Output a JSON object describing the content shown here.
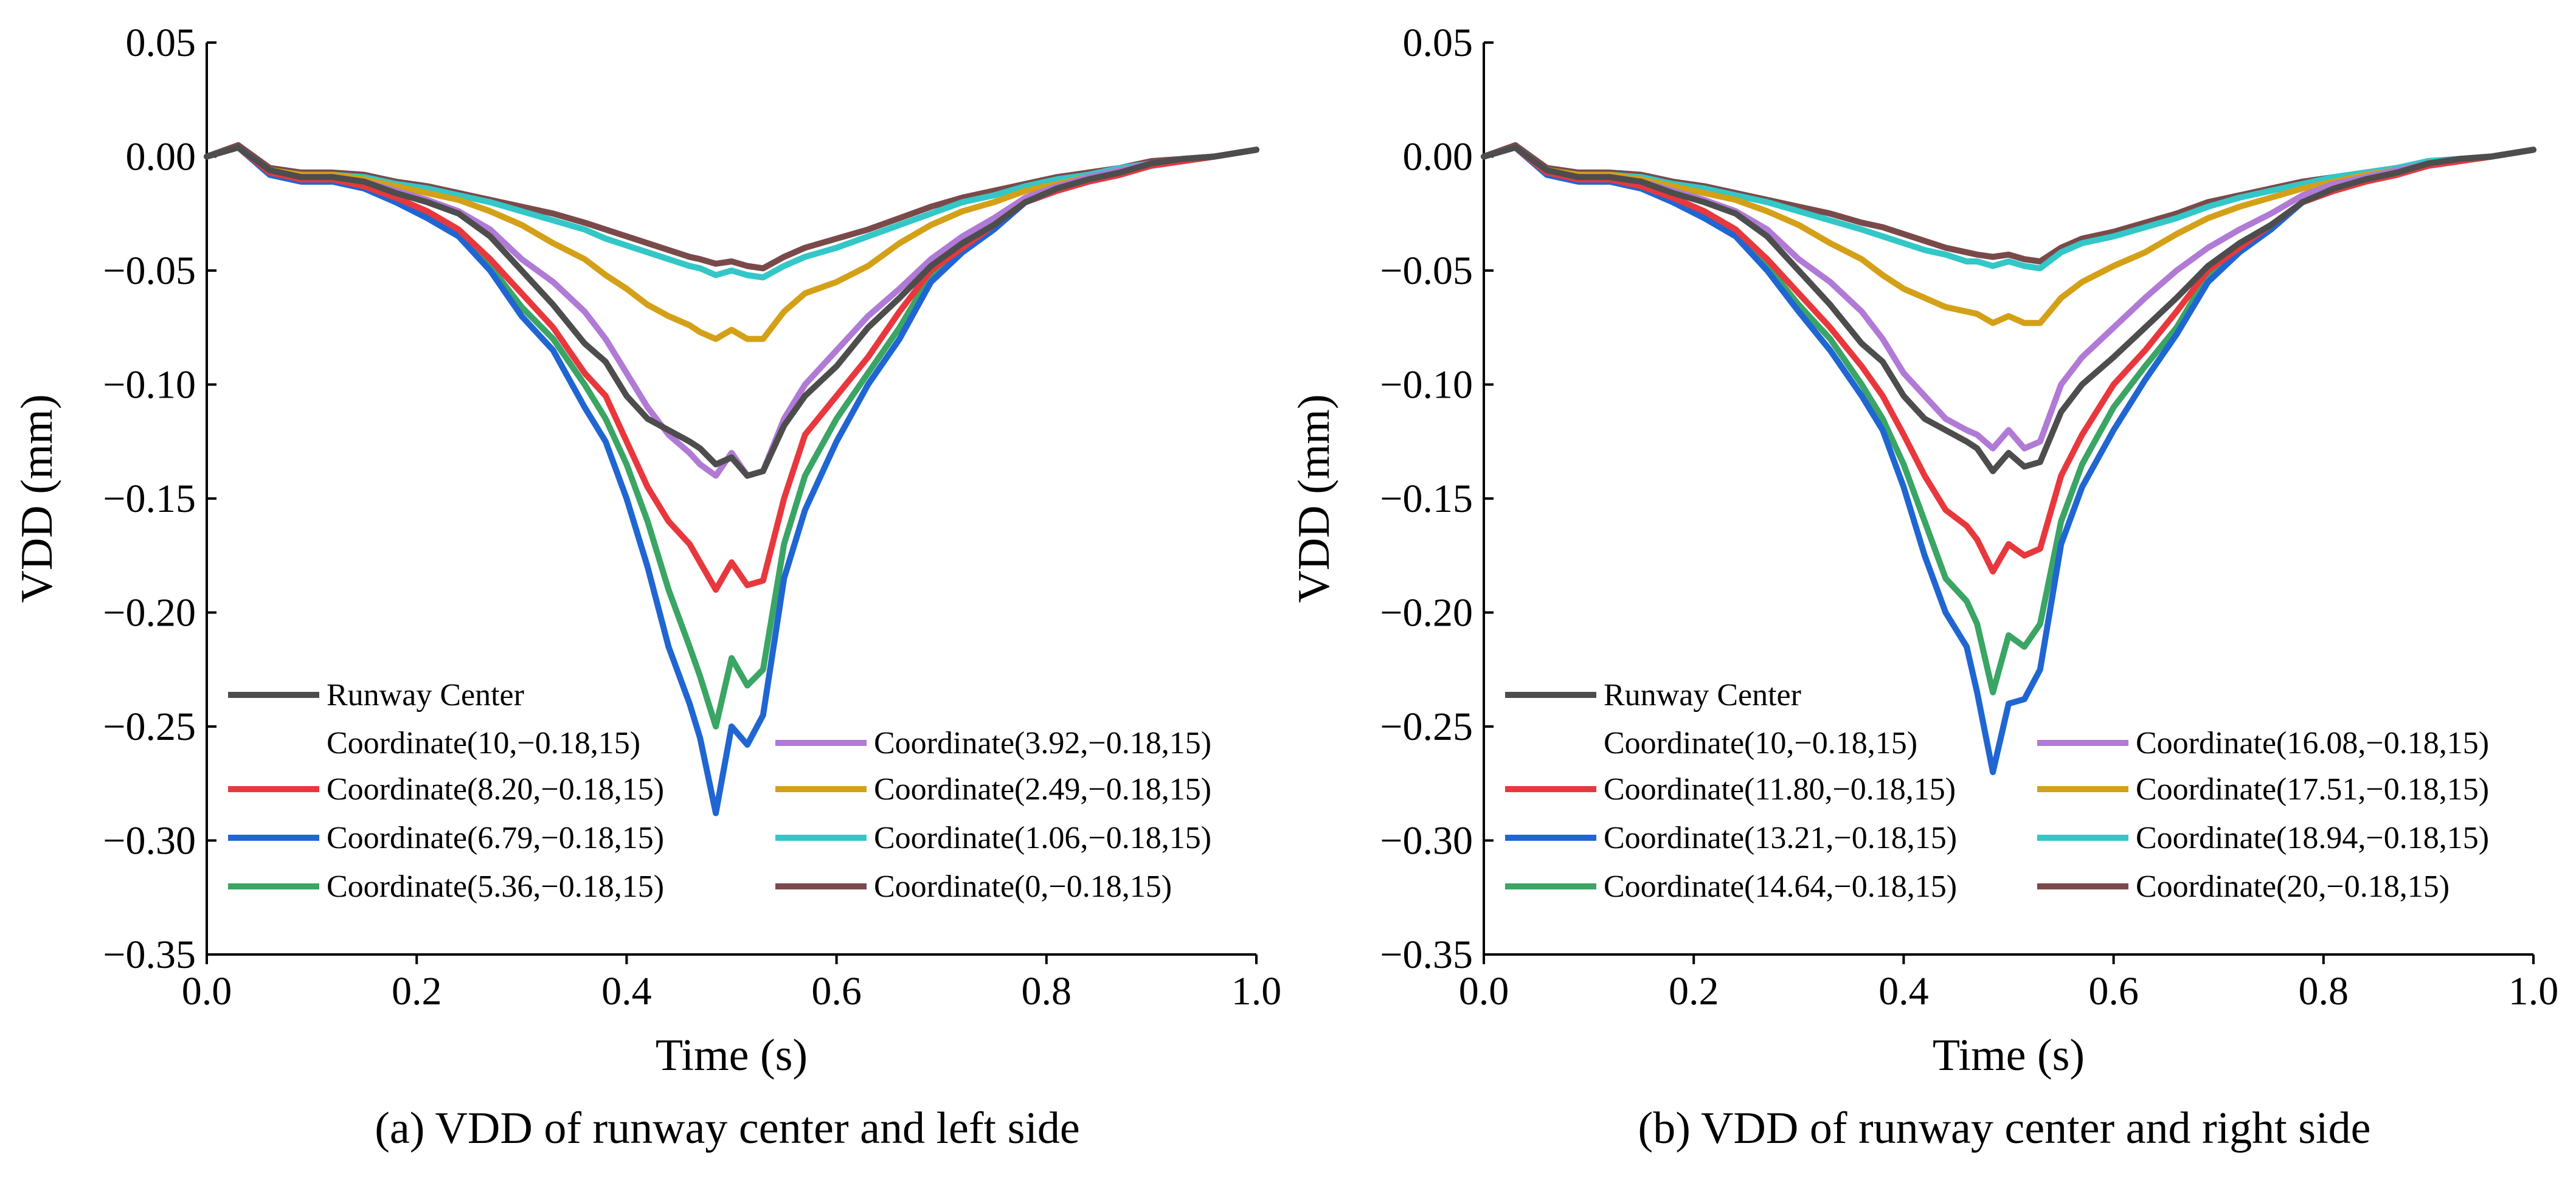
{
  "figure": {
    "captions": [
      "(a) VDD of runway center and left side",
      "(b) VDD of runway center and right side"
    ]
  },
  "chart_data": [
    {
      "type": "line",
      "title": "",
      "xlabel": "Time (s)",
      "ylabel": "VDD (mm)",
      "xlim": [
        0.0,
        1.0
      ],
      "ylim": [
        -0.35,
        0.05
      ],
      "xticks": [
        "0.0",
        "0.2",
        "0.4",
        "0.6",
        "0.8",
        "1.0"
      ],
      "yticks": [
        "0.05",
        "0.00",
        "−0.05",
        "−0.10",
        "−0.15",
        "−0.20",
        "−0.25",
        "−0.30",
        "−0.35"
      ],
      "grid": false,
      "legend_position": "bottom-left",
      "x": [
        0.0,
        0.03,
        0.06,
        0.09,
        0.12,
        0.15,
        0.18,
        0.21,
        0.24,
        0.27,
        0.3,
        0.33,
        0.36,
        0.38,
        0.4,
        0.42,
        0.44,
        0.46,
        0.47,
        0.485,
        0.5,
        0.515,
        0.53,
        0.55,
        0.57,
        0.6,
        0.63,
        0.66,
        0.69,
        0.72,
        0.75,
        0.78,
        0.81,
        0.84,
        0.87,
        0.9,
        0.93,
        0.96,
        1.0
      ],
      "series": [
        {
          "name": "Runway Center",
          "values": [
            0.0,
            0.004,
            -0.006,
            -0.009,
            -0.009,
            -0.011,
            -0.016,
            -0.02,
            -0.025,
            -0.035,
            -0.05,
            -0.065,
            -0.082,
            -0.09,
            -0.105,
            -0.115,
            -0.12,
            -0.125,
            -0.128,
            -0.135,
            -0.132,
            -0.14,
            -0.138,
            -0.118,
            -0.105,
            -0.092,
            -0.075,
            -0.062,
            -0.048,
            -0.038,
            -0.03,
            -0.02,
            -0.014,
            -0.01,
            -0.007,
            -0.003,
            -0.001,
            0.0,
            0.003
          ]
        },
        {
          "name": "Coordinate(8.20,−0.18,15)",
          "values": [
            0.0,
            0.004,
            -0.007,
            -0.01,
            -0.01,
            -0.013,
            -0.018,
            -0.024,
            -0.032,
            -0.045,
            -0.06,
            -0.075,
            -0.095,
            -0.105,
            -0.125,
            -0.145,
            -0.16,
            -0.17,
            -0.178,
            -0.19,
            -0.178,
            -0.188,
            -0.186,
            -0.15,
            -0.122,
            -0.105,
            -0.088,
            -0.068,
            -0.05,
            -0.04,
            -0.03,
            -0.02,
            -0.015,
            -0.011,
            -0.008,
            -0.004,
            -0.002,
            0.0,
            0.003
          ]
        },
        {
          "name": "Coordinate(6.79,−0.18,15)",
          "values": [
            0.0,
            0.004,
            -0.008,
            -0.011,
            -0.011,
            -0.014,
            -0.02,
            -0.027,
            -0.035,
            -0.05,
            -0.07,
            -0.085,
            -0.11,
            -0.125,
            -0.15,
            -0.18,
            -0.215,
            -0.24,
            -0.255,
            -0.288,
            -0.25,
            -0.258,
            -0.245,
            -0.185,
            -0.155,
            -0.125,
            -0.1,
            -0.08,
            -0.055,
            -0.042,
            -0.032,
            -0.02,
            -0.015,
            -0.011,
            -0.008,
            -0.004,
            -0.002,
            0.0,
            0.003
          ]
        },
        {
          "name": "Coordinate(5.36,−0.18,15)",
          "values": [
            0.0,
            0.004,
            -0.008,
            -0.011,
            -0.011,
            -0.014,
            -0.02,
            -0.026,
            -0.034,
            -0.048,
            -0.066,
            -0.08,
            -0.1,
            -0.115,
            -0.135,
            -0.16,
            -0.19,
            -0.215,
            -0.228,
            -0.25,
            -0.22,
            -0.232,
            -0.225,
            -0.17,
            -0.14,
            -0.115,
            -0.095,
            -0.075,
            -0.052,
            -0.04,
            -0.031,
            -0.02,
            -0.015,
            -0.011,
            -0.008,
            -0.004,
            -0.002,
            0.0,
            0.003
          ]
        },
        {
          "name": "Coordinate(3.92,−0.18,15)",
          "values": [
            0.0,
            0.004,
            -0.006,
            -0.009,
            -0.009,
            -0.011,
            -0.015,
            -0.019,
            -0.024,
            -0.032,
            -0.045,
            -0.055,
            -0.068,
            -0.08,
            -0.095,
            -0.11,
            -0.122,
            -0.13,
            -0.135,
            -0.14,
            -0.13,
            -0.14,
            -0.138,
            -0.115,
            -0.1,
            -0.085,
            -0.07,
            -0.058,
            -0.045,
            -0.035,
            -0.027,
            -0.018,
            -0.013,
            -0.009,
            -0.006,
            -0.003,
            -0.001,
            0.0,
            0.003
          ]
        },
        {
          "name": "Coordinate(2.49,−0.18,15)",
          "values": [
            0.0,
            0.004,
            -0.006,
            -0.008,
            -0.008,
            -0.01,
            -0.013,
            -0.016,
            -0.019,
            -0.024,
            -0.03,
            -0.038,
            -0.045,
            -0.052,
            -0.058,
            -0.065,
            -0.07,
            -0.074,
            -0.077,
            -0.08,
            -0.076,
            -0.08,
            -0.08,
            -0.068,
            -0.06,
            -0.055,
            -0.048,
            -0.038,
            -0.03,
            -0.024,
            -0.02,
            -0.015,
            -0.012,
            -0.009,
            -0.006,
            -0.003,
            -0.001,
            0.0,
            0.003
          ]
        },
        {
          "name": "Coordinate(1.06,−0.18,15)",
          "values": [
            0.0,
            0.004,
            -0.006,
            -0.008,
            -0.008,
            -0.009,
            -0.012,
            -0.014,
            -0.017,
            -0.02,
            -0.024,
            -0.028,
            -0.032,
            -0.036,
            -0.039,
            -0.042,
            -0.045,
            -0.048,
            -0.049,
            -0.052,
            -0.05,
            -0.052,
            -0.053,
            -0.048,
            -0.044,
            -0.04,
            -0.035,
            -0.03,
            -0.025,
            -0.02,
            -0.017,
            -0.013,
            -0.01,
            -0.008,
            -0.005,
            -0.003,
            -0.001,
            0.0,
            0.003
          ]
        },
        {
          "name": "Coordinate(0,−0.18,15)",
          "values": [
            0.0,
            0.005,
            -0.005,
            -0.007,
            -0.007,
            -0.008,
            -0.011,
            -0.013,
            -0.016,
            -0.019,
            -0.022,
            -0.025,
            -0.029,
            -0.032,
            -0.035,
            -0.038,
            -0.041,
            -0.044,
            -0.045,
            -0.047,
            -0.046,
            -0.048,
            -0.049,
            -0.044,
            -0.04,
            -0.036,
            -0.032,
            -0.027,
            -0.022,
            -0.018,
            -0.015,
            -0.012,
            -0.009,
            -0.007,
            -0.005,
            -0.002,
            -0.001,
            0.0,
            0.003
          ]
        }
      ]
    },
    {
      "type": "line",
      "title": "",
      "xlabel": "Time (s)",
      "ylabel": "VDD (mm)",
      "xlim": [
        0.0,
        1.0
      ],
      "ylim": [
        -0.35,
        0.05
      ],
      "xticks": [
        "0.0",
        "0.2",
        "0.4",
        "0.6",
        "0.8",
        "1.0"
      ],
      "yticks": [
        "0.05",
        "0.00",
        "−0.05",
        "−0.10",
        "−0.15",
        "−0.20",
        "−0.25",
        "−0.30",
        "−0.35"
      ],
      "grid": false,
      "legend_position": "bottom-left",
      "x": [
        0.0,
        0.03,
        0.06,
        0.09,
        0.12,
        0.15,
        0.18,
        0.21,
        0.24,
        0.27,
        0.3,
        0.33,
        0.36,
        0.38,
        0.4,
        0.42,
        0.44,
        0.46,
        0.47,
        0.485,
        0.5,
        0.515,
        0.53,
        0.55,
        0.57,
        0.6,
        0.63,
        0.66,
        0.69,
        0.72,
        0.75,
        0.78,
        0.81,
        0.84,
        0.87,
        0.9,
        0.93,
        0.96,
        1.0
      ],
      "series": [
        {
          "name": "Runway Center",
          "values": [
            0.0,
            0.004,
            -0.006,
            -0.009,
            -0.009,
            -0.011,
            -0.016,
            -0.02,
            -0.025,
            -0.035,
            -0.05,
            -0.065,
            -0.082,
            -0.09,
            -0.105,
            -0.115,
            -0.12,
            -0.125,
            -0.128,
            -0.138,
            -0.13,
            -0.136,
            -0.134,
            -0.112,
            -0.1,
            -0.088,
            -0.075,
            -0.062,
            -0.048,
            -0.038,
            -0.03,
            -0.02,
            -0.014,
            -0.01,
            -0.007,
            -0.003,
            -0.001,
            0.0,
            0.003
          ]
        },
        {
          "name": "Coordinate(11.80,−0.18,15)",
          "values": [
            0.0,
            0.004,
            -0.007,
            -0.01,
            -0.01,
            -0.013,
            -0.018,
            -0.024,
            -0.032,
            -0.045,
            -0.06,
            -0.075,
            -0.092,
            -0.105,
            -0.122,
            -0.14,
            -0.155,
            -0.162,
            -0.168,
            -0.182,
            -0.17,
            -0.175,
            -0.172,
            -0.14,
            -0.122,
            -0.1,
            -0.085,
            -0.068,
            -0.05,
            -0.04,
            -0.03,
            -0.02,
            -0.015,
            -0.011,
            -0.008,
            -0.004,
            -0.002,
            0.0,
            0.003
          ]
        },
        {
          "name": "Coordinate(13.21,−0.18,15)",
          "values": [
            0.0,
            0.004,
            -0.008,
            -0.011,
            -0.011,
            -0.014,
            -0.02,
            -0.027,
            -0.035,
            -0.05,
            -0.068,
            -0.085,
            -0.105,
            -0.12,
            -0.145,
            -0.175,
            -0.2,
            -0.215,
            -0.235,
            -0.27,
            -0.24,
            -0.238,
            -0.225,
            -0.17,
            -0.145,
            -0.12,
            -0.098,
            -0.078,
            -0.055,
            -0.042,
            -0.032,
            -0.02,
            -0.015,
            -0.011,
            -0.008,
            -0.004,
            -0.002,
            0.0,
            0.003
          ]
        },
        {
          "name": "Coordinate(14.64,−0.18,15)",
          "values": [
            0.0,
            0.004,
            -0.008,
            -0.011,
            -0.011,
            -0.014,
            -0.02,
            -0.026,
            -0.034,
            -0.048,
            -0.065,
            -0.08,
            -0.1,
            -0.115,
            -0.135,
            -0.16,
            -0.185,
            -0.195,
            -0.205,
            -0.235,
            -0.21,
            -0.215,
            -0.205,
            -0.16,
            -0.135,
            -0.11,
            -0.092,
            -0.075,
            -0.052,
            -0.04,
            -0.031,
            -0.02,
            -0.015,
            -0.011,
            -0.008,
            -0.004,
            -0.002,
            0.0,
            0.003
          ]
        },
        {
          "name": "Coordinate(16.08,−0.18,15)",
          "values": [
            0.0,
            0.004,
            -0.006,
            -0.009,
            -0.009,
            -0.011,
            -0.015,
            -0.019,
            -0.024,
            -0.032,
            -0.045,
            -0.055,
            -0.068,
            -0.08,
            -0.095,
            -0.105,
            -0.115,
            -0.12,
            -0.122,
            -0.128,
            -0.12,
            -0.128,
            -0.125,
            -0.1,
            -0.088,
            -0.075,
            -0.062,
            -0.05,
            -0.04,
            -0.032,
            -0.025,
            -0.017,
            -0.012,
            -0.009,
            -0.006,
            -0.003,
            -0.001,
            0.0,
            0.003
          ]
        },
        {
          "name": "Coordinate(17.51,−0.18,15)",
          "values": [
            0.0,
            0.004,
            -0.006,
            -0.008,
            -0.008,
            -0.01,
            -0.013,
            -0.016,
            -0.019,
            -0.024,
            -0.03,
            -0.038,
            -0.045,
            -0.052,
            -0.058,
            -0.062,
            -0.066,
            -0.068,
            -0.069,
            -0.073,
            -0.07,
            -0.073,
            -0.073,
            -0.062,
            -0.055,
            -0.048,
            -0.042,
            -0.034,
            -0.027,
            -0.022,
            -0.018,
            -0.014,
            -0.011,
            -0.008,
            -0.006,
            -0.003,
            -0.001,
            0.0,
            0.003
          ]
        },
        {
          "name": "Coordinate(18.94,−0.18,15)",
          "values": [
            0.0,
            0.004,
            -0.006,
            -0.008,
            -0.008,
            -0.009,
            -0.012,
            -0.014,
            -0.017,
            -0.02,
            -0.024,
            -0.028,
            -0.032,
            -0.035,
            -0.038,
            -0.041,
            -0.043,
            -0.046,
            -0.046,
            -0.048,
            -0.046,
            -0.048,
            -0.049,
            -0.042,
            -0.038,
            -0.035,
            -0.031,
            -0.027,
            -0.022,
            -0.018,
            -0.015,
            -0.012,
            -0.009,
            -0.007,
            -0.005,
            -0.002,
            -0.001,
            0.0,
            0.003
          ]
        },
        {
          "name": "Coordinate(20,−0.18,15)",
          "values": [
            0.0,
            0.005,
            -0.005,
            -0.007,
            -0.007,
            -0.008,
            -0.011,
            -0.013,
            -0.016,
            -0.019,
            -0.022,
            -0.025,
            -0.029,
            -0.031,
            -0.034,
            -0.037,
            -0.04,
            -0.042,
            -0.043,
            -0.044,
            -0.043,
            -0.045,
            -0.046,
            -0.04,
            -0.036,
            -0.033,
            -0.029,
            -0.025,
            -0.02,
            -0.017,
            -0.014,
            -0.011,
            -0.009,
            -0.007,
            -0.005,
            -0.002,
            -0.001,
            0.0,
            0.003
          ]
        }
      ]
    }
  ],
  "series_colors": [
    "#4d4d4d",
    "#e8383d",
    "#2066d2",
    "#3aa564",
    "#b07ad6",
    "#d4a017",
    "#33c7c7",
    "#7a4a4a"
  ]
}
